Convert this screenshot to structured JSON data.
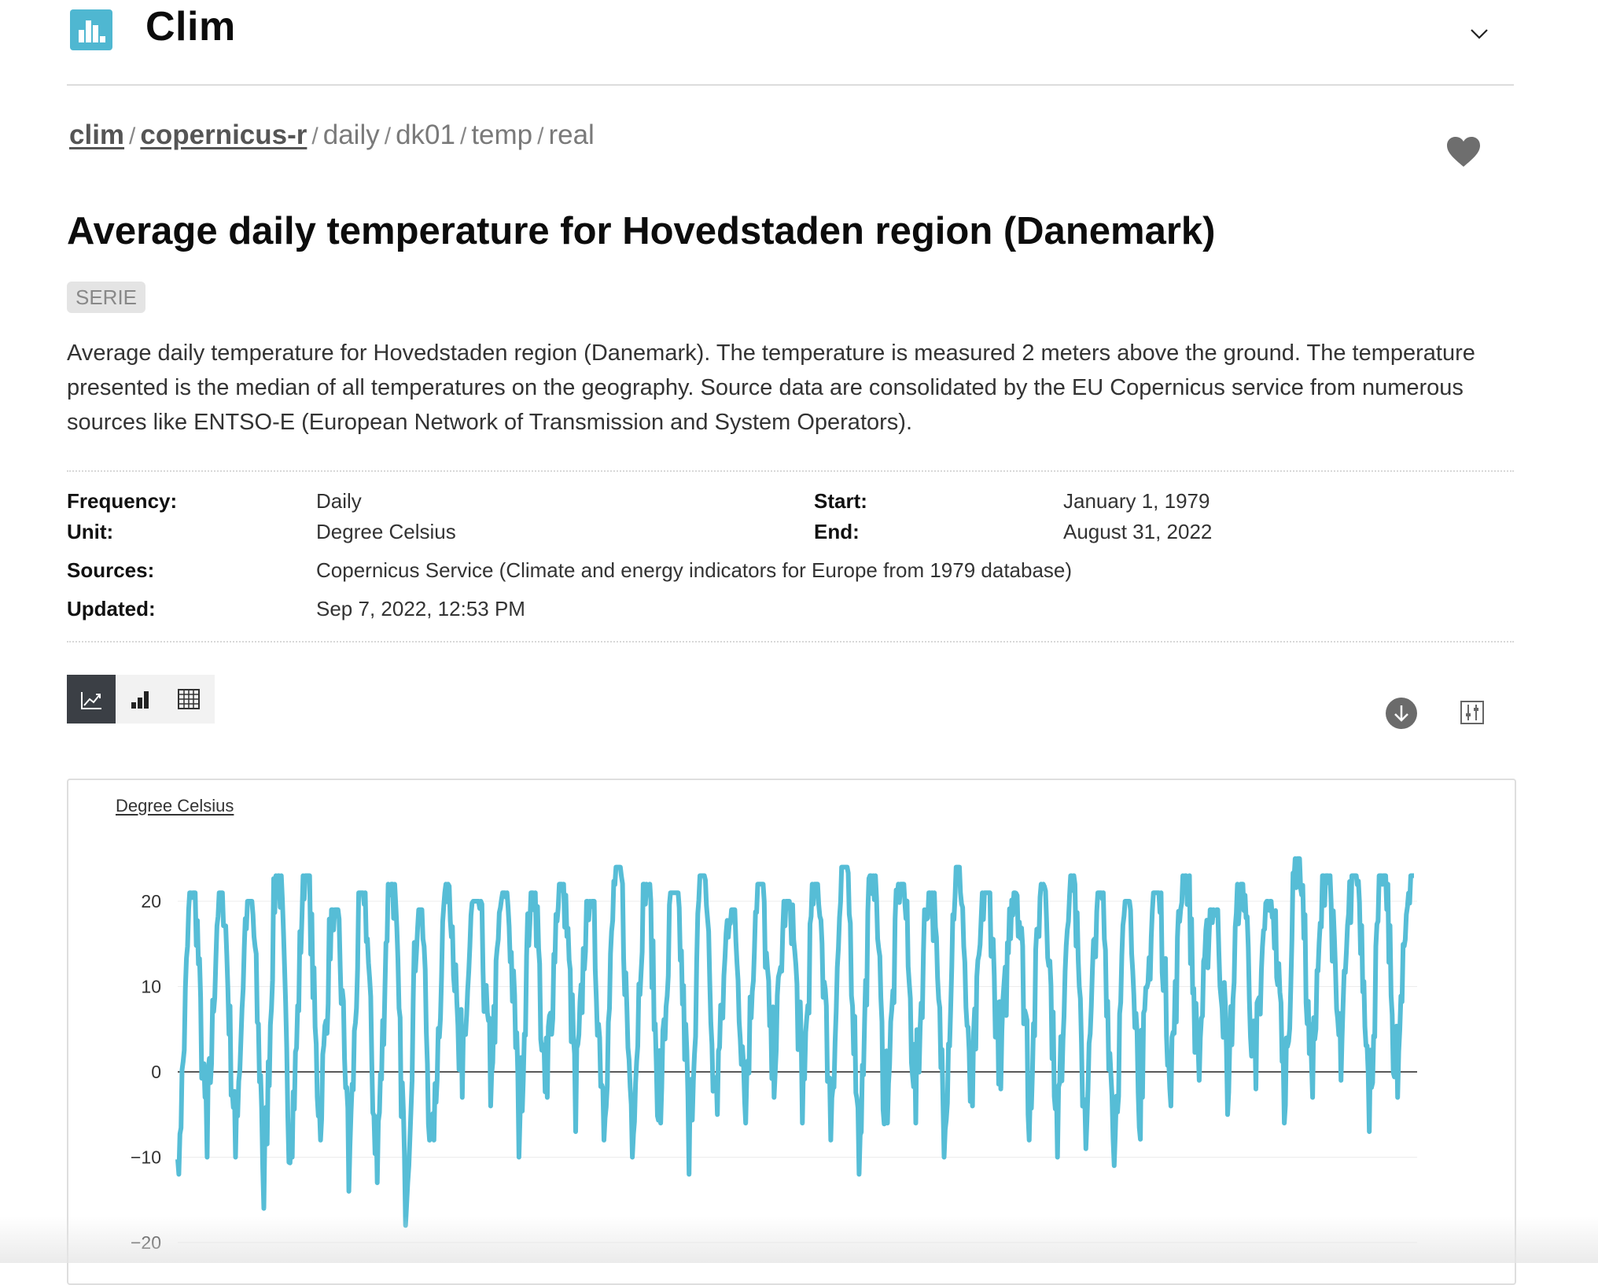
{
  "header": {
    "brand": "Clim",
    "logo_icon": "bar-chart-logo-icon",
    "menu_icon": "chevron-down-icon"
  },
  "breadcrumb": {
    "links": [
      "clim",
      "copernicus-r"
    ],
    "segments": [
      "daily",
      "dk01",
      "temp",
      "real"
    ],
    "separator": "/"
  },
  "favorite_icon": "heart-icon",
  "title": "Average daily temperature for Hovedstaden region (Danemark)",
  "badge": "SERIE",
  "description": "Average daily temperature for Hovedstaden region (Danemark). The temperature is measured 2 meters above the ground. The temperature presented is the median of all temperatures on the geography. Source data are consolidated by the EU Copernicus service from numerous sources like ENTSO-E (European Network of Transmission and System Operators).",
  "meta": {
    "frequency_label": "Frequency:",
    "frequency": "Daily",
    "unit_label": "Unit:",
    "unit": "Degree Celsius",
    "sources_label": "Sources:",
    "sources": "Copernicus Service (Climate and energy indicators for Europe from 1979 database)",
    "updated_label": "Updated:",
    "updated": "Sep 7, 2022, 12:53 PM",
    "start_label": "Start:",
    "start": "January 1, 1979",
    "end_label": "End:",
    "end": "August 31, 2022"
  },
  "toolbar": {
    "views": [
      {
        "icon": "line-chart-icon",
        "active": true
      },
      {
        "icon": "bar-chart-icon",
        "active": false
      },
      {
        "icon": "table-grid-icon",
        "active": false
      }
    ],
    "download_icon": "download-icon",
    "settings_icon": "sliders-icon"
  },
  "colors": {
    "series": "#56bdd6",
    "logo": "#4fb7d1",
    "active_tab": "#3b3f45"
  },
  "chart_data": {
    "type": "line",
    "ylabel": "Degree Celsius",
    "ylim": [
      -20,
      25
    ],
    "yticks": [
      20,
      10,
      0,
      -10,
      -20
    ],
    "ytick_labels": [
      "20",
      "10",
      "0",
      "−10",
      "−20"
    ],
    "x_start": "1979-01-01",
    "x_end": "2022-08-31",
    "grid": true,
    "series": [
      {
        "x": [
          1979,
          1980,
          1981,
          1982,
          1983,
          1984,
          1985,
          1986,
          1987,
          1988,
          1989,
          1990,
          1991,
          1992,
          1993,
          1994,
          1995,
          1996,
          1997,
          1998,
          1999,
          2000,
          2001,
          2002,
          2003,
          2004,
          2005,
          2006,
          2007,
          2008,
          2009,
          2010,
          2011,
          2012,
          2013,
          2014,
          2015,
          2016,
          2017,
          2018,
          2019,
          2020,
          2021,
          2022
        ],
        "summer_max": [
          21,
          21,
          20,
          23,
          23,
          19,
          21,
          22,
          19,
          22,
          20,
          21,
          21,
          22,
          20,
          24,
          22,
          21,
          23,
          19,
          22,
          20,
          22,
          24,
          23,
          22,
          21,
          24,
          21,
          21,
          22,
          23,
          21,
          20,
          21,
          23,
          19,
          22,
          20,
          25,
          23,
          23,
          23,
          23
        ],
        "winter_min": [
          -12,
          -10,
          -10,
          -16,
          -10,
          -8,
          -14,
          -13,
          -18,
          -8,
          -3,
          -4,
          -10,
          -3,
          -7,
          -8,
          -10,
          -6,
          -12,
          -5,
          -6,
          -3,
          -6,
          -8,
          -12,
          -6,
          -6,
          -10,
          -4,
          -2,
          -8,
          -10,
          -9,
          -11,
          -3,
          -4,
          -1,
          -5,
          -2,
          -6,
          -3,
          -1,
          -7,
          -3
        ]
      }
    ]
  }
}
